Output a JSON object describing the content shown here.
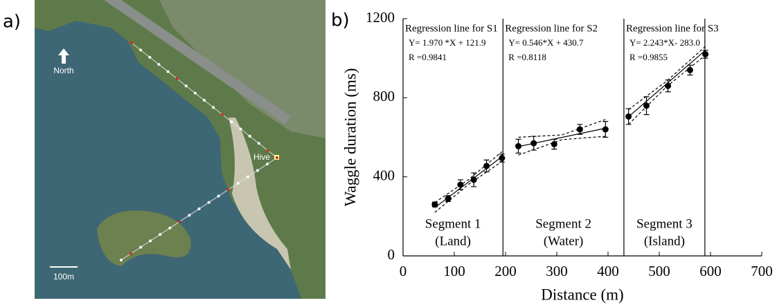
{
  "panels": {
    "a_label": "a)",
    "b_label": "b)"
  },
  "map": {
    "north": "North",
    "hive": "Hive",
    "scale": "100m"
  },
  "chart_data": {
    "type": "scatter",
    "color": "#000000",
    "xlabel": "Distance (m)",
    "ylabel": "Waggle duration (ms)",
    "xlim": [
      0,
      700
    ],
    "ylim": [
      0,
      1200
    ],
    "xticks": [
      0,
      100,
      200,
      300,
      400,
      500,
      600,
      700
    ],
    "yticks": [
      0,
      400,
      800,
      1200
    ],
    "series": [
      {
        "x": [
          62,
          88,
          112,
          138,
          163,
          193
        ],
        "values": [
          260,
          290,
          360,
          385,
          455,
          495
        ],
        "errors": [
          12,
          15,
          25,
          35,
          30,
          20
        ]
      },
      {
        "x": [
          225,
          255,
          295,
          345,
          395
        ],
        "values": [
          555,
          570,
          565,
          640,
          640
        ],
        "errors": [
          35,
          35,
          25,
          25,
          40
        ]
      },
      {
        "x": [
          440,
          475,
          517,
          560,
          590
        ],
        "values": [
          705,
          760,
          860,
          940,
          1020
        ],
        "errors": [
          40,
          45,
          30,
          25,
          20
        ]
      }
    ],
    "regression_lines": [
      {
        "x": [
          62,
          193
        ],
        "values": [
          244,
          502
        ]
      },
      {
        "x": [
          225,
          395
        ],
        "values": [
          553,
          646
        ]
      },
      {
        "x": [
          440,
          590
        ],
        "values": [
          704,
          1040
        ]
      }
    ],
    "confidence_bands": [
      {
        "x": [
          62,
          128,
          193
        ],
        "upper": [
          270,
          386,
          527
        ],
        "lower": [
          220,
          362,
          478
        ]
      },
      {
        "x": [
          225,
          310,
          395
        ],
        "upper": [
          600,
          612,
          690
        ],
        "lower": [
          510,
          588,
          605
        ]
      },
      {
        "x": [
          440,
          515,
          590
        ],
        "upper": [
          740,
          885,
          1060
        ],
        "lower": [
          665,
          858,
          1015
        ]
      }
    ],
    "dividers": [
      195,
      431,
      589
    ],
    "annotations": [
      [
        "Regression line for S1",
        "Y= 1.970 *X + 121.9",
        "R  =0.9841"
      ],
      [
        "Regression line for S2",
        "Y= 0.546*X + 430.7",
        "R  =0.8118"
      ],
      [
        "Regression line for S3",
        "Y= 2.243*X- 283.0",
        "R =0.9855"
      ]
    ],
    "segment_labels": [
      [
        "Segment 1",
        "(Land)"
      ],
      [
        "Segment 2",
        "(Water)"
      ],
      [
        "Segment 3",
        "(Island)"
      ]
    ]
  }
}
